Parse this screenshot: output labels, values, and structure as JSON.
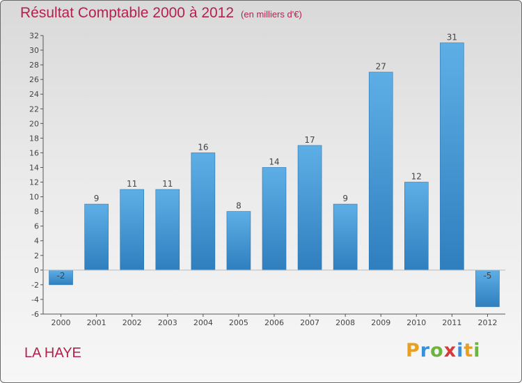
{
  "title": "Résultat Comptable 2000 à 2012",
  "subtitle": "(en milliers d'€)",
  "city": "LA HAYE",
  "brand": [
    "P",
    "r",
    "o",
    "x",
    "i",
    "t",
    "i"
  ],
  "colors": {
    "bar_top": "#5eaee6",
    "bar_bottom": "#2f7fbf",
    "title": "#b5204d"
  },
  "chart_data": {
    "type": "bar",
    "title": "Résultat Comptable 2000 à 2012",
    "xlabel": "",
    "ylabel": "",
    "categories": [
      "2000",
      "2001",
      "2002",
      "2003",
      "2004",
      "2005",
      "2006",
      "2007",
      "2008",
      "2009",
      "2010",
      "2011",
      "2012"
    ],
    "values": [
      -2,
      9,
      11,
      11,
      16,
      8,
      14,
      17,
      9,
      27,
      12,
      31,
      -5
    ],
    "ylim": [
      -6,
      32
    ],
    "yticks": [
      -6,
      -4,
      -2,
      0,
      2,
      4,
      6,
      8,
      10,
      12,
      14,
      16,
      18,
      20,
      22,
      24,
      26,
      28,
      30,
      32
    ],
    "grid": false
  }
}
